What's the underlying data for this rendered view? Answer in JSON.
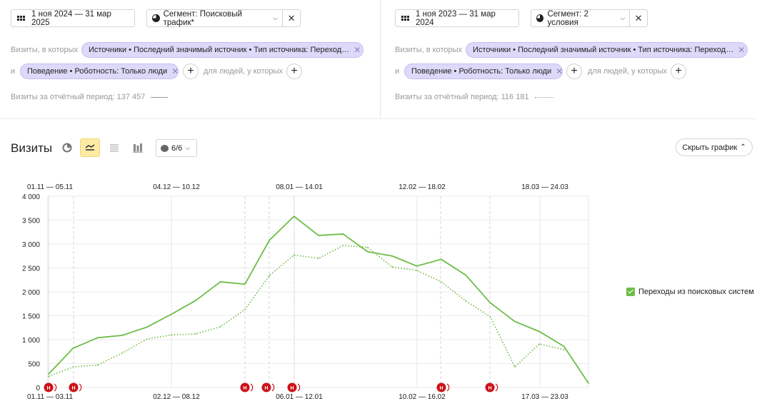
{
  "left": {
    "date_range": "1 ноя 2024 — 31 мар 2025",
    "segment_label": "Сегмент: Поисковый трафик*",
    "visits_where": "Визиты, в которых",
    "source_chip": "Источники • Последний значимый источник • Тип источника: Переход…",
    "and_label": "и",
    "behavior_chip": "Поведение • Роботность: Только люди",
    "for_people": "для людей, у которых",
    "total_text": "Визиты за отчётный период: 137 457"
  },
  "right": {
    "date_range": "1 ноя 2023 — 31 мар 2024",
    "segment_label": "Сегмент: 2 условия",
    "visits_where": "Визиты, в которых",
    "source_chip": "Источники • Последний значимый источник • Тип источника: Переход…",
    "and_label": "и",
    "behavior_chip": "Поведение • Роботность: Только люди",
    "for_people": "для людей, у которых",
    "total_text": "Визиты за отчётный период: 116 181"
  },
  "toolbar": {
    "title": "Визиты",
    "count": "6/6",
    "hide_chart": "Скрыть график",
    "icons": [
      "pie-chart-icon",
      "line-chart-icon",
      "area-chart-icon",
      "bar-chart-icon",
      "chat-bubble-icon",
      "chevron-down-icon",
      "chevron-up-icon",
      "close-icon",
      "calendar-icon",
      "plus-icon"
    ]
  },
  "legend": {
    "series": "Переходы из поисковых систем",
    "color": "#6cbd45"
  },
  "chart_data": {
    "type": "line",
    "top_labels": [
      "01.11 — 05.11",
      "04.12 — 10.12",
      "08.01 — 14.01",
      "12.02 — 18.02",
      "18.03 — 24.03"
    ],
    "bottom_labels": [
      "01.11 — 03.11",
      "02.12 — 08.12",
      "06.01 — 12.01",
      "10.02 — 16.02",
      "17.03 — 23.03"
    ],
    "y_ticks": [
      "0",
      "500",
      "1 000",
      "1 500",
      "2 000",
      "2 500",
      "3 000",
      "3 500",
      "4 000"
    ],
    "ylim": [
      0,
      4000
    ],
    "series": [
      {
        "name": "Переходы из поисковых систем",
        "style": "solid",
        "color": "#6cbd45",
        "values": [
          280,
          820,
          1040,
          1090,
          1260,
          1530,
          1820,
          2210,
          2160,
          3080,
          3580,
          3180,
          3210,
          2840,
          2750,
          2540,
          2680,
          2350,
          1770,
          1380,
          1170,
          860,
          90
        ]
      },
      {
        "style": "dotted",
        "color": "#6cbd45",
        "values": [
          230,
          430,
          470,
          720,
          1010,
          1100,
          1120,
          1270,
          1630,
          2340,
          2770,
          2700,
          2970,
          2930,
          2520,
          2450,
          2210,
          1810,
          1480,
          430,
          910,
          790
        ]
      }
    ],
    "markers": [
      {
        "label": "Н",
        "x_index": 0
      },
      {
        "label": "Н",
        "x_index": 1
      },
      {
        "label": "Н",
        "x_index": 8
      },
      {
        "label": "Н",
        "x_index": 9
      },
      {
        "label": "Н",
        "x_index": 10
      },
      {
        "label": "Н",
        "x_index": 16
      },
      {
        "label": "Н",
        "x_index": 18
      }
    ],
    "grid": true,
    "marker_color": "#cc1118"
  }
}
